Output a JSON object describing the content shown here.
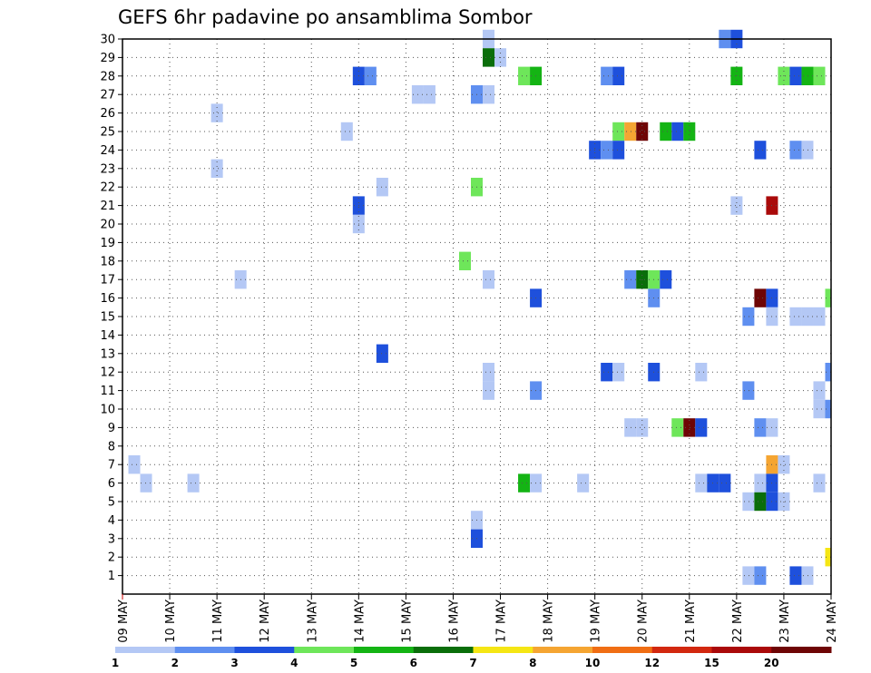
{
  "chart_data": {
    "type": "heatmap",
    "title": "GEFS 6hr padavine po ansamblima Sombor",
    "x_start_day": 9,
    "x_end_day": 24,
    "x_tick_labels": [
      "09 MAY",
      "10 MAY",
      "11 MAY",
      "12 MAY",
      "13 MAY",
      "14 MAY",
      "15 MAY",
      "16 MAY",
      "17 MAY",
      "18 MAY",
      "19 MAY",
      "20 MAY",
      "21 MAY",
      "22 MAY",
      "23 MAY",
      "24 MAY"
    ],
    "y_range": [
      0,
      30
    ],
    "y_tick_labels": [
      "1",
      "2",
      "3",
      "4",
      "5",
      "6",
      "7",
      "8",
      "9",
      "10",
      "11",
      "12",
      "13",
      "14",
      "15",
      "16",
      "17",
      "18",
      "19",
      "20",
      "21",
      "22",
      "23",
      "24",
      "25",
      "26",
      "27",
      "28",
      "29",
      "30"
    ],
    "grid": true,
    "legend": {
      "placement": "bottom",
      "colors": [
        "#b4c8f5",
        "#5f8ff0",
        "#1e50dc",
        "#6ee65a",
        "#14b414",
        "#0a6e0a",
        "#f5e614",
        "#f5a532",
        "#f06e14",
        "#d2280f",
        "#aa0a0a",
        "#6e0505"
      ],
      "labels": [
        "1",
        "2",
        "3",
        "4",
        "5",
        "6",
        "7",
        "8",
        "10",
        "12",
        "15",
        "20"
      ]
    },
    "cells": [
      {
        "x": 16.75,
        "y": 30,
        "c": 1
      },
      {
        "x": 21.75,
        "y": 30,
        "c": 2
      },
      {
        "x": 22,
        "y": 30,
        "c": 3
      },
      {
        "x": 16.75,
        "y": 29,
        "c": 6
      },
      {
        "x": 17,
        "y": 29,
        "c": 1
      },
      {
        "x": 14,
        "y": 28,
        "c": 3
      },
      {
        "x": 14.25,
        "y": 28,
        "c": 2
      },
      {
        "x": 17.5,
        "y": 28,
        "c": 4
      },
      {
        "x": 17.75,
        "y": 28,
        "c": 5
      },
      {
        "x": 19.25,
        "y": 28,
        "c": 2
      },
      {
        "x": 19.5,
        "y": 28,
        "c": 3
      },
      {
        "x": 22,
        "y": 28,
        "c": 5
      },
      {
        "x": 23,
        "y": 28,
        "c": 4
      },
      {
        "x": 23.25,
        "y": 28,
        "c": 3
      },
      {
        "x": 23.5,
        "y": 28,
        "c": 5
      },
      {
        "x": 23.75,
        "y": 28,
        "c": 4
      },
      {
        "x": 15.25,
        "y": 27,
        "c": 1
      },
      {
        "x": 15.5,
        "y": 27,
        "c": 1
      },
      {
        "x": 16.5,
        "y": 27,
        "c": 2
      },
      {
        "x": 16.75,
        "y": 27,
        "c": 1
      },
      {
        "x": 11,
        "y": 26,
        "c": 1
      },
      {
        "x": 13.75,
        "y": 25,
        "c": 1
      },
      {
        "x": 19.5,
        "y": 25,
        "c": 4
      },
      {
        "x": 19.75,
        "y": 25,
        "c": 8
      },
      {
        "x": 20,
        "y": 25,
        "c": 12
      },
      {
        "x": 20.5,
        "y": 25,
        "c": 5
      },
      {
        "x": 20.75,
        "y": 25,
        "c": 3
      },
      {
        "x": 21,
        "y": 25,
        "c": 5
      },
      {
        "x": 19,
        "y": 24,
        "c": 3
      },
      {
        "x": 19.25,
        "y": 24,
        "c": 2
      },
      {
        "x": 19.5,
        "y": 24,
        "c": 3
      },
      {
        "x": 22.5,
        "y": 24,
        "c": 3
      },
      {
        "x": 23.25,
        "y": 24,
        "c": 2
      },
      {
        "x": 23.5,
        "y": 24,
        "c": 1
      },
      {
        "x": 11,
        "y": 23,
        "c": 1
      },
      {
        "x": 14.5,
        "y": 22,
        "c": 1
      },
      {
        "x": 16.5,
        "y": 22,
        "c": 4
      },
      {
        "x": 14,
        "y": 21,
        "c": 3
      },
      {
        "x": 22,
        "y": 21,
        "c": 1
      },
      {
        "x": 22.75,
        "y": 21,
        "c": 11
      },
      {
        "x": 14,
        "y": 20,
        "c": 1
      },
      {
        "x": 16.25,
        "y": 18,
        "c": 4
      },
      {
        "x": 11.5,
        "y": 17,
        "c": 1
      },
      {
        "x": 16.75,
        "y": 17,
        "c": 1
      },
      {
        "x": 19.75,
        "y": 17,
        "c": 2
      },
      {
        "x": 20,
        "y": 17,
        "c": 6
      },
      {
        "x": 20.25,
        "y": 17,
        "c": 4
      },
      {
        "x": 20.5,
        "y": 17,
        "c": 3
      },
      {
        "x": 17.75,
        "y": 16,
        "c": 3
      },
      {
        "x": 20.25,
        "y": 16,
        "c": 2
      },
      {
        "x": 22.5,
        "y": 16,
        "c": 12
      },
      {
        "x": 22.75,
        "y": 16,
        "c": 3
      },
      {
        "x": 24,
        "y": 16,
        "c": 4
      },
      {
        "x": 22.25,
        "y": 15,
        "c": 2
      },
      {
        "x": 22.75,
        "y": 15,
        "c": 1
      },
      {
        "x": 23.25,
        "y": 15,
        "c": 1
      },
      {
        "x": 23.5,
        "y": 15,
        "c": 1
      },
      {
        "x": 23.75,
        "y": 15,
        "c": 1
      },
      {
        "x": 14.5,
        "y": 13,
        "c": 3
      },
      {
        "x": 16.75,
        "y": 12,
        "c": 1
      },
      {
        "x": 19.25,
        "y": 12,
        "c": 3
      },
      {
        "x": 19.5,
        "y": 12,
        "c": 1
      },
      {
        "x": 20.25,
        "y": 12,
        "c": 3
      },
      {
        "x": 21.25,
        "y": 12,
        "c": 1
      },
      {
        "x": 24,
        "y": 12,
        "c": 2
      },
      {
        "x": 16.75,
        "y": 11,
        "c": 1
      },
      {
        "x": 17.75,
        "y": 11,
        "c": 2
      },
      {
        "x": 22.25,
        "y": 11,
        "c": 2
      },
      {
        "x": 23.75,
        "y": 11,
        "c": 1
      },
      {
        "x": 23.75,
        "y": 10,
        "c": 1
      },
      {
        "x": 24,
        "y": 10,
        "c": 2
      },
      {
        "x": 19.75,
        "y": 9,
        "c": 1
      },
      {
        "x": 20,
        "y": 9,
        "c": 1
      },
      {
        "x": 20.75,
        "y": 9,
        "c": 4
      },
      {
        "x": 21,
        "y": 9,
        "c": 12
      },
      {
        "x": 21.25,
        "y": 9,
        "c": 3
      },
      {
        "x": 22.5,
        "y": 9,
        "c": 2
      },
      {
        "x": 22.75,
        "y": 9,
        "c": 1
      },
      {
        "x": 9.25,
        "y": 7,
        "c": 1
      },
      {
        "x": 22.75,
        "y": 7,
        "c": 8
      },
      {
        "x": 23,
        "y": 7,
        "c": 1
      },
      {
        "x": 9.5,
        "y": 6,
        "c": 1
      },
      {
        "x": 10.5,
        "y": 6,
        "c": 1
      },
      {
        "x": 17.5,
        "y": 6,
        "c": 5
      },
      {
        "x": 17.75,
        "y": 6,
        "c": 1
      },
      {
        "x": 18.75,
        "y": 6,
        "c": 1
      },
      {
        "x": 21.25,
        "y": 6,
        "c": 1
      },
      {
        "x": 21.5,
        "y": 6,
        "c": 3
      },
      {
        "x": 21.75,
        "y": 6,
        "c": 3
      },
      {
        "x": 22.5,
        "y": 6,
        "c": 1
      },
      {
        "x": 22.75,
        "y": 6,
        "c": 3
      },
      {
        "x": 23.75,
        "y": 6,
        "c": 1
      },
      {
        "x": 22.25,
        "y": 5,
        "c": 1
      },
      {
        "x": 22.5,
        "y": 5,
        "c": 6
      },
      {
        "x": 22.75,
        "y": 5,
        "c": 3
      },
      {
        "x": 23,
        "y": 5,
        "c": 1
      },
      {
        "x": 16.5,
        "y": 4,
        "c": 1
      },
      {
        "x": 16.5,
        "y": 3,
        "c": 3
      },
      {
        "x": 24,
        "y": 2,
        "c": 7
      },
      {
        "x": 22.25,
        "y": 1,
        "c": 1
      },
      {
        "x": 22.5,
        "y": 1,
        "c": 2
      },
      {
        "x": 23.25,
        "y": 1,
        "c": 3
      },
      {
        "x": 23.5,
        "y": 1,
        "c": 1
      }
    ]
  }
}
